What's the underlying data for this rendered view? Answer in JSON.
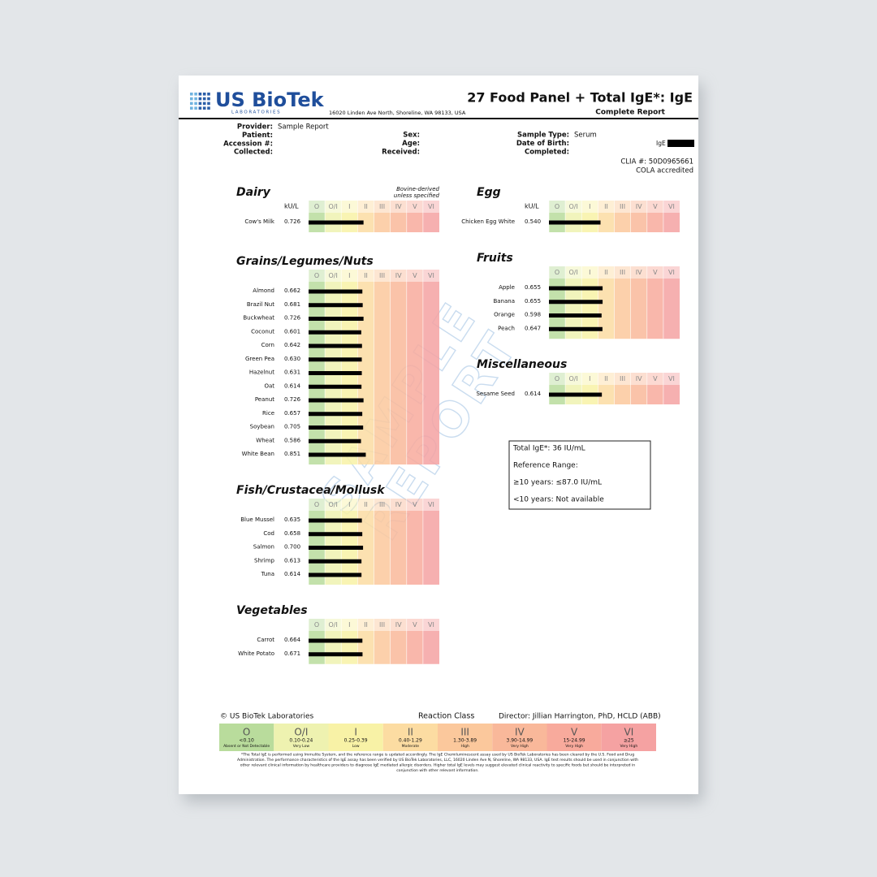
{
  "header": {
    "logo": "US BioTek",
    "logo_sub": "LABORATORIES",
    "address": "16020 Linden Ave North, Shoreline, WA 98133, USA",
    "title": "27 Food Panel + Total IgE*: IgE",
    "subtitle": "Complete Report"
  },
  "patient": {
    "left": [
      {
        "label": "Provider:",
        "value": "Sample Report"
      },
      {
        "label": "Patient:"
      },
      {
        "label": "Accession #:"
      },
      {
        "label": "Collected:"
      }
    ],
    "middle": [
      {
        "label": "Sex:"
      },
      {
        "label": "Age:"
      },
      {
        "label": "Received:"
      }
    ],
    "right": [
      {
        "label": "Sample Type:",
        "value": "Serum"
      },
      {
        "label": "Date of Birth:"
      },
      {
        "label": "Completed:"
      }
    ],
    "antibody": "IgE",
    "clia": "CLIA #: 50D0965661",
    "cola": "COLA accredited"
  },
  "reaction_classes": [
    {
      "class": "O",
      "range": "<0.10",
      "description": "Absent or Not Detectable",
      "color": "#b9dc9c"
    },
    {
      "class": "O/I",
      "range": "0.10-0.24",
      "description": "Very Low",
      "color": "#eef2b0"
    },
    {
      "class": "I",
      "range": "0.25-0.39",
      "description": "Low",
      "color": "#f8f2a6"
    },
    {
      "class": "II",
      "range": "0.40-1.29",
      "description": "Moderate",
      "color": "#fcdca2"
    },
    {
      "class": "III",
      "range": "1.30-3.89",
      "description": "High",
      "color": "#fbc89c"
    },
    {
      "class": "IV",
      "range": "3.90-14.99",
      "description": "Very High",
      "color": "#f9b89a"
    },
    {
      "class": "V",
      "range": "15-24.99",
      "description": "Very High",
      "color": "#f8aa9c"
    },
    {
      "class": "VI",
      "range": "≥25",
      "description": "Very High",
      "color": "#f5a2a2"
    }
  ],
  "sections": [
    {
      "title": "Dairy",
      "note": [
        "Bovine-derived",
        "unless specified"
      ],
      "unit": "kU/L",
      "items": [
        {
          "name": "Cow's Milk",
          "value": 0.726
        }
      ]
    },
    {
      "title": "Egg",
      "unit": "kU/L",
      "items": [
        {
          "name": "Chicken Egg White",
          "value": 0.54,
          "value_label": "0.540"
        }
      ]
    },
    {
      "title": "Grains/Legumes/Nuts",
      "items": [
        {
          "name": "Almond",
          "value": 0.662
        },
        {
          "name": "Brazil Nut",
          "value": 0.681
        },
        {
          "name": "Buckwheat",
          "value": 0.726
        },
        {
          "name": "Coconut",
          "value": 0.601
        },
        {
          "name": "Corn",
          "value": 0.642
        },
        {
          "name": "Green Pea",
          "value": 0.63,
          "value_label": "0.630"
        },
        {
          "name": "Hazelnut",
          "value": 0.631
        },
        {
          "name": "Oat",
          "value": 0.614
        },
        {
          "name": "Peanut",
          "value": 0.726
        },
        {
          "name": "Rice",
          "value": 0.657
        },
        {
          "name": "Soybean",
          "value": 0.705
        },
        {
          "name": "Wheat",
          "value": 0.586
        },
        {
          "name": "White Bean",
          "value": 0.851
        }
      ]
    },
    {
      "title": "Fruits",
      "items": [
        {
          "name": "Apple",
          "value": 0.655
        },
        {
          "name": "Banana",
          "value": 0.655
        },
        {
          "name": "Orange",
          "value": 0.598
        },
        {
          "name": "Peach",
          "value": 0.647
        }
      ]
    },
    {
      "title": "Miscellaneous",
      "items": [
        {
          "name": "Sesame Seed",
          "value": 0.614
        }
      ]
    },
    {
      "title": "Fish/Crustacea/Mollusk",
      "items": [
        {
          "name": "Blue Mussel",
          "value": 0.635
        },
        {
          "name": "Cod",
          "value": 0.658
        },
        {
          "name": "Salmon",
          "value": 0.7,
          "value_label": "0.700"
        },
        {
          "name": "Shrimp",
          "value": 0.613
        },
        {
          "name": "Tuna",
          "value": 0.614
        }
      ]
    },
    {
      "title": "Vegetables",
      "items": [
        {
          "name": "Carrot",
          "value": 0.664
        },
        {
          "name": "White Potato",
          "value": 0.671
        }
      ]
    }
  ],
  "total_ige": [
    "Total IgE*: 36 IU/mL",
    "Reference Range:",
    "≥10 years: ≤87.0 IU/mL",
    "<10 years: Not available"
  ],
  "watermark": [
    "SAMPLE",
    "REPORT"
  ],
  "footer": {
    "copyright": "© US BioTek Laboratories",
    "legend_title": "Reaction Class",
    "director": "Director: Jillian Harrington, PhD, HCLD (ABB)",
    "disclaimer": [
      "*The Total IgE is performed using Immulite System, and the reference range is updated accordingly. The IgE Chemiluminescent assay used by US BioTek Laboratories has been cleared by the U.S. Food and Drug",
      "Administration. The performance characteristics of the IgE assay has been verified by US BioTek Laboratories, LLC, 16020 Linden Ave N, Shoreline, WA 98133, USA. IgE test results should be used in conjunction with",
      "other relevant clinical information by healthcare providers to diagnose IgE mediated allergic disorders. Higher total IgE levels may suggest elevated clinical reactivity to specific foods but should be interpreted in",
      "conjunction with other relevant information."
    ]
  }
}
